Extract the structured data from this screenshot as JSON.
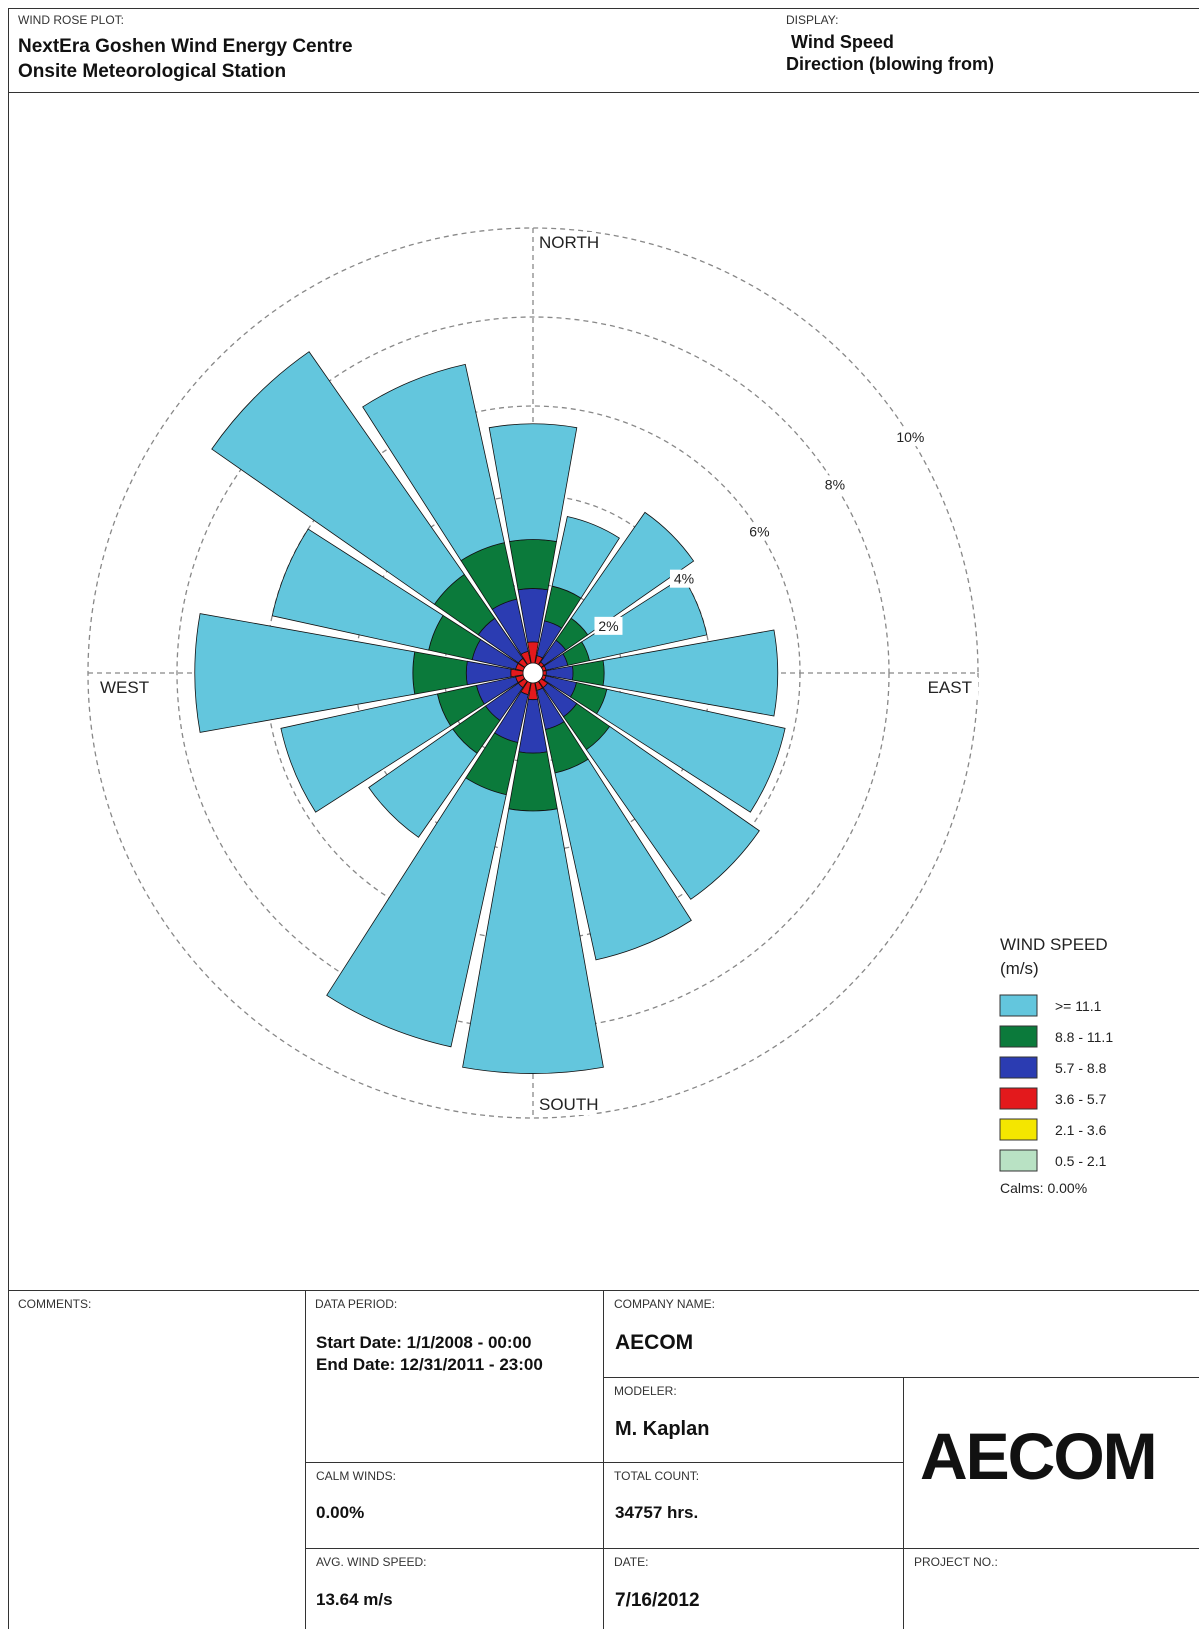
{
  "header": {
    "plot_label": "WIND ROSE PLOT:",
    "title_lines": [
      "NextEra Goshen Wind Energy Centre",
      "Onsite Meteorological Station"
    ],
    "display_label": "DISPLAY:",
    "display_lines": [
      "Wind Speed",
      "Direction (blowing from)"
    ]
  },
  "chart_data": {
    "type": "windrose",
    "direction_labels": {
      "north": "NORTH",
      "east": "EAST",
      "south": "SOUTH",
      "west": "WEST"
    },
    "rlim": [
      0,
      10
    ],
    "rticks": [
      {
        "value": 2,
        "label": "2%"
      },
      {
        "value": 4,
        "label": "4%"
      },
      {
        "value": 6,
        "label": "6%"
      },
      {
        "value": 8,
        "label": "8%"
      },
      {
        "value": 10,
        "label": "10%"
      }
    ],
    "grid": true,
    "legend_title": [
      "WIND SPEED",
      "(m/s)"
    ],
    "legend_position": "lower right",
    "calms_label": "Calms: 0.00%",
    "series": [
      {
        "name": "0.5 - 2.1",
        "color": "#b9e2c4",
        "values": [
          0,
          0,
          0,
          0,
          0,
          0,
          0,
          0,
          0,
          0,
          0,
          0,
          0,
          0,
          0,
          0
        ]
      },
      {
        "name": "2.1 - 3.6",
        "color": "#f4e600",
        "values": [
          0,
          0,
          0,
          0,
          0,
          0,
          0,
          0,
          0,
          0,
          0,
          0,
          0,
          0,
          0,
          0
        ]
      },
      {
        "name": "3.6 - 5.7",
        "color": "#e3191c",
        "values": [
          0.7,
          0.4,
          0.3,
          0.3,
          0.3,
          0.3,
          0.4,
          0.4,
          0.6,
          0.5,
          0.4,
          0.4,
          0.5,
          0.4,
          0.4,
          0.5
        ]
      },
      {
        "name": "5.7 - 8.8",
        "color": "#2b3cb2",
        "values": [
          1.2,
          0.8,
          0.6,
          0.5,
          0.6,
          0.7,
          0.8,
          0.9,
          1.2,
          1.1,
          0.9,
          0.9,
          1.0,
          1.0,
          1.1,
          1.2
        ]
      },
      {
        "name": "8.8 - 11.1",
        "color": "#0b7a3b",
        "values": [
          1.1,
          0.8,
          0.6,
          0.5,
          0.7,
          0.7,
          0.9,
          1.0,
          1.3,
          1.2,
          0.9,
          0.9,
          1.2,
          1.0,
          1.2,
          1.3
        ]
      },
      {
        "name": ">= 11.1",
        "color": "#63c6dd",
        "values": [
          2.6,
          1.6,
          2.9,
          2.7,
          3.9,
          4.1,
          4.1,
          4.3,
          5.9,
          5.8,
          2.3,
          3.6,
          4.9,
          3.6,
          6.1,
          4.1
        ]
      }
    ]
  },
  "footer": {
    "comments_label": "COMMENTS:",
    "data_period_label": "DATA PERIOD:",
    "data_period_lines": [
      "Start Date: 1/1/2008 - 00:00",
      "End Date: 12/31/2011 - 23:00"
    ],
    "company_label": "COMPANY NAME:",
    "company": "AECOM",
    "modeler_label": "MODELER:",
    "modeler": "M. Kaplan",
    "logo": "AECOM",
    "calm_label": "CALM WINDS:",
    "calm": "0.00%",
    "count_label": "TOTAL COUNT:",
    "count": "34757 hrs.",
    "avg_label": "AVG. WIND SPEED:",
    "avg": "13.64 m/s",
    "date_label": "DATE:",
    "date": "7/16/2012",
    "project_label": "PROJECT NO.:"
  }
}
